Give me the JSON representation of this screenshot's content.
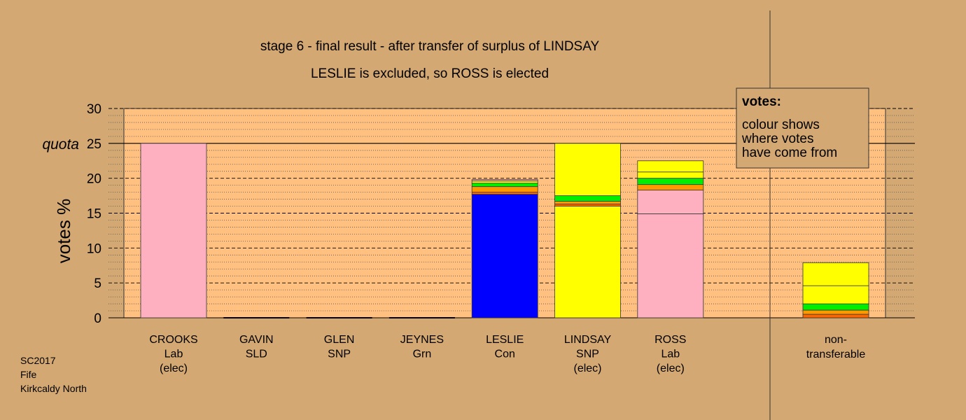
{
  "chart_data": {
    "type": "bar",
    "title": "stage 6 - final result - after transfer of surplus of LINDSAY",
    "subtitle": "LESLIE is excluded, so ROSS is elected",
    "ylabel": "votes %",
    "ylim": [
      0,
      30
    ],
    "yticks": [
      "0",
      "5",
      "10",
      "15",
      "20",
      "25",
      "30"
    ],
    "quota": {
      "label": "quota",
      "value": 25
    },
    "grid": true,
    "legend": {
      "placement": "top-right",
      "heading": "votes:",
      "lines": [
        "colour shows",
        "where votes",
        "have come from"
      ]
    },
    "colors": {
      "Lab": "#ffb0c0",
      "Con": "#0000ff",
      "SNP": "#ffff00",
      "Grn": "#00ee00",
      "SLD": "#ff9900",
      "other": "#ff6600"
    },
    "categories": [
      {
        "name": "CROOKS",
        "party": "Lab",
        "status": "(elec)",
        "segments": [
          {
            "from": "Lab",
            "value": 25.0
          }
        ]
      },
      {
        "name": "GAVIN",
        "party": "SLD",
        "status": "",
        "segments": []
      },
      {
        "name": "GLEN",
        "party": "SNP",
        "status": "",
        "segments": []
      },
      {
        "name": "JEYNES",
        "party": "Grn",
        "status": "",
        "segments": []
      },
      {
        "name": "LESLIE",
        "party": "Con",
        "status": "",
        "segments": [
          {
            "from": "Con",
            "value": 17.7
          },
          {
            "from": "other",
            "value": 0.3
          },
          {
            "from": "SLD",
            "value": 0.8
          },
          {
            "from": "Grn",
            "value": 0.5
          },
          {
            "from": "SNP",
            "value": 0.3
          },
          {
            "from": "Lab",
            "value": 0.2
          }
        ]
      },
      {
        "name": "LINDSAY",
        "party": "SNP",
        "status": "(elec)",
        "segments": [
          {
            "from": "SNP",
            "value": 16.0
          },
          {
            "from": "other",
            "value": 0.3
          },
          {
            "from": "SLD",
            "value": 0.4
          },
          {
            "from": "Grn",
            "value": 0.8
          },
          {
            "from": "SNP",
            "value": 7.5
          }
        ]
      },
      {
        "name": "ROSS",
        "party": "Lab",
        "status": "(elec)",
        "segments": [
          {
            "from": "Lab",
            "value": 14.9
          },
          {
            "from": "Lab",
            "value": 3.4
          },
          {
            "from": "SLD",
            "value": 0.8
          },
          {
            "from": "Grn",
            "value": 0.9
          },
          {
            "from": "SNP",
            "value": 0.9
          },
          {
            "from": "SNP",
            "value": 1.6
          }
        ]
      }
    ],
    "non_transferable": {
      "label_line1": "non-",
      "label_line2": "transferable",
      "segments": [
        {
          "from": "other",
          "value": 0.5
        },
        {
          "from": "SLD",
          "value": 0.6
        },
        {
          "from": "Grn",
          "value": 0.9
        },
        {
          "from": "SNP",
          "value": 2.6
        },
        {
          "from": "SNP",
          "value": 3.3
        }
      ]
    }
  },
  "footer": {
    "line1": "SC2017",
    "line2": "Fife",
    "line3": "Kirkcaldy North"
  }
}
